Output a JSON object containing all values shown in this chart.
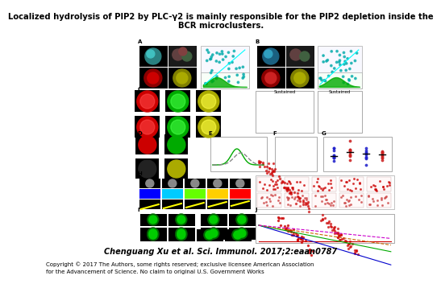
{
  "title_line1": "Localized hydrolysis of PIP2 by PLC-γ2 is mainly responsible for the PIP2 depletion inside the",
  "title_line2": "BCR microclusters.",
  "citation": "Chenguang Xu et al. Sci. Immunol. 2017;2:eaan0787",
  "copyright_line1": "Copyright © 2017 The Authors, some rights reserved; exclusive licensee American Association",
  "copyright_line2": "for the Advancement of Science. No claim to original U.S. Government Works",
  "fig_bg_color": "#ffffff",
  "title_fontsize": 7.2,
  "citation_fontsize": 7.0,
  "copyright_fontsize": 5.0,
  "panel_bg_color": "#ffffff"
}
